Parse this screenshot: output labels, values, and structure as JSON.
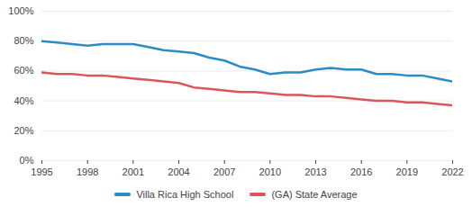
{
  "chart_data": {
    "type": "line",
    "x": [
      1995,
      1996,
      1997,
      1998,
      1999,
      2000,
      2001,
      2002,
      2003,
      2004,
      2005,
      2006,
      2007,
      2008,
      2009,
      2010,
      2011,
      2012,
      2013,
      2014,
      2015,
      2016,
      2017,
      2018,
      2019,
      2020,
      2021,
      2022
    ],
    "series": [
      {
        "name": "Villa Rica High School",
        "color": "#2b8cc4",
        "values": [
          80,
          79,
          78,
          77,
          78,
          78,
          78,
          76,
          74,
          73,
          72,
          69,
          67,
          63,
          61,
          58,
          59,
          59,
          61,
          62,
          61,
          61,
          58,
          58,
          57,
          57,
          55,
          53
        ]
      },
      {
        "name": "(GA) State Average",
        "color": "#d9575b",
        "values": [
          59,
          58,
          58,
          57,
          57,
          56,
          55,
          54,
          53,
          52,
          49,
          48,
          47,
          46,
          46,
          45,
          44,
          44,
          43,
          43,
          42,
          41,
          40,
          40,
          39,
          39,
          38,
          37
        ]
      }
    ],
    "xlim": [
      1995,
      2022
    ],
    "xticks": [
      1995,
      1998,
      2001,
      2004,
      2007,
      2010,
      2013,
      2016,
      2019,
      2022
    ],
    "ylim": [
      0,
      100
    ],
    "yticks": [
      {
        "value": 0,
        "label": "0%"
      },
      {
        "value": 20,
        "label": "20%"
      },
      {
        "value": 40,
        "label": "40%"
      },
      {
        "value": 60,
        "label": "60%"
      },
      {
        "value": 80,
        "label": "80%"
      },
      {
        "value": 100,
        "label": "100%"
      }
    ],
    "grid": true,
    "legend": "bottom"
  }
}
